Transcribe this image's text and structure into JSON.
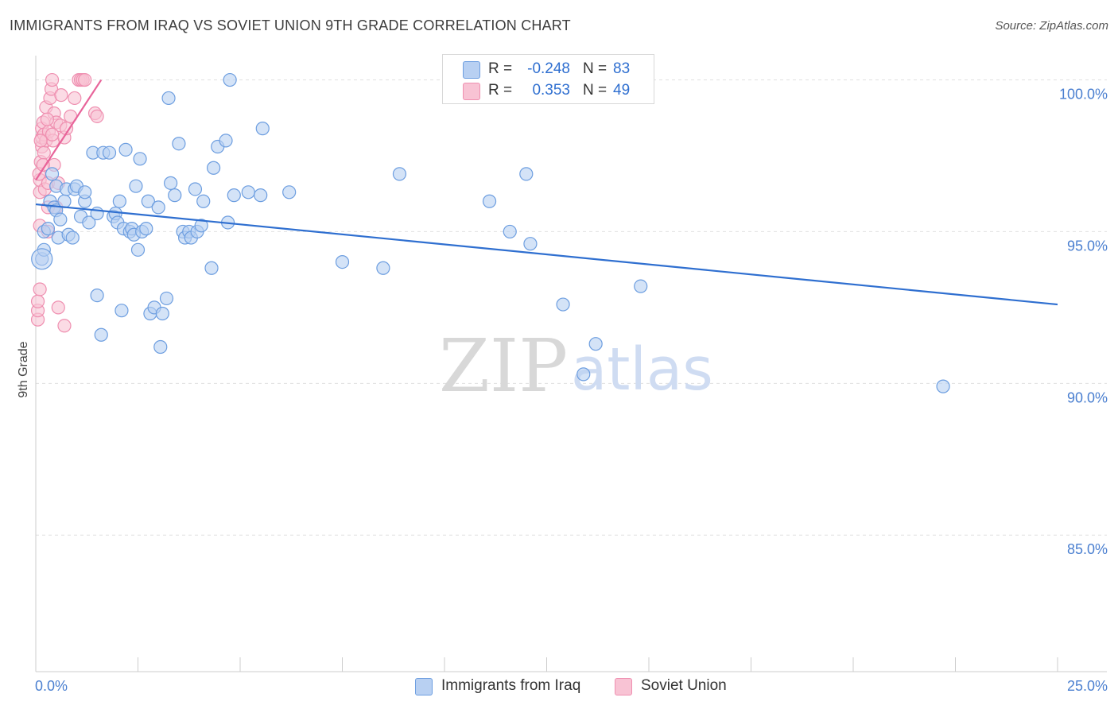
{
  "title": "IMMIGRANTS FROM IRAQ VS SOVIET UNION 9TH GRADE CORRELATION CHART",
  "source": "Source: ZipAtlas.com",
  "watermark": {
    "zip": "ZIP",
    "atlas": "atlas"
  },
  "colors": {
    "blue_fill": "#b8d0f2",
    "blue_stroke": "#6d9ee0",
    "blue_line": "#2f6fd0",
    "pink_fill": "#f8c3d4",
    "pink_stroke": "#ef8fb0",
    "pink_line": "#e8649a",
    "grid": "#e0e0e0",
    "axis_text": "#4a7fd0"
  },
  "legend": {
    "rows": [
      {
        "r_label": "R =",
        "r_value": "-0.248",
        "n_label": "N =",
        "n_value": "83"
      },
      {
        "r_label": "R =",
        "r_value": "0.353",
        "n_label": "N =",
        "n_value": "49"
      }
    ]
  },
  "chart_data": {
    "type": "scatter",
    "xlabel": "",
    "ylabel": "9th Grade",
    "xlim": [
      0,
      25
    ],
    "ylim": [
      80.5,
      100.8
    ],
    "x_tick_labels": [
      "0.0%",
      "25.0%"
    ],
    "y_tick_labels": [
      "100.0%",
      "95.0%",
      "90.0%",
      "85.0%"
    ],
    "y_ticks": [
      100,
      95,
      90,
      85
    ],
    "grid": true,
    "series": [
      {
        "name": "Immigrants from Iraq",
        "color": "#6d9ee0",
        "r": -0.248,
        "n": 83,
        "trend": {
          "x": [
            0,
            25
          ],
          "y": [
            95.9,
            92.6
          ]
        },
        "points": [
          [
            0.15,
            94.1
          ],
          [
            0.2,
            94.4
          ],
          [
            0.2,
            95.0
          ],
          [
            0.3,
            95.1
          ],
          [
            0.35,
            96.0
          ],
          [
            0.4,
            96.9
          ],
          [
            0.45,
            95.8
          ],
          [
            0.5,
            95.7
          ],
          [
            0.5,
            96.5
          ],
          [
            0.55,
            94.8
          ],
          [
            0.6,
            95.4
          ],
          [
            0.7,
            96.0
          ],
          [
            0.75,
            96.4
          ],
          [
            0.8,
            94.9
          ],
          [
            0.9,
            94.8
          ],
          [
            0.95,
            96.4
          ],
          [
            1.0,
            96.5
          ],
          [
            1.1,
            95.5
          ],
          [
            1.2,
            96.0
          ],
          [
            1.2,
            96.3
          ],
          [
            1.3,
            95.3
          ],
          [
            1.4,
            97.6
          ],
          [
            1.5,
            95.6
          ],
          [
            1.5,
            92.9
          ],
          [
            1.6,
            91.6
          ],
          [
            1.65,
            97.6
          ],
          [
            1.8,
            97.6
          ],
          [
            1.9,
            95.5
          ],
          [
            1.95,
            95.6
          ],
          [
            2.0,
            95.3
          ],
          [
            2.05,
            96.0
          ],
          [
            2.1,
            92.4
          ],
          [
            2.15,
            95.1
          ],
          [
            2.2,
            97.7
          ],
          [
            2.3,
            95.0
          ],
          [
            2.35,
            95.1
          ],
          [
            2.4,
            94.9
          ],
          [
            2.45,
            96.5
          ],
          [
            2.5,
            94.4
          ],
          [
            2.55,
            97.4
          ],
          [
            2.6,
            95.0
          ],
          [
            2.7,
            95.1
          ],
          [
            2.75,
            96.0
          ],
          [
            2.8,
            92.3
          ],
          [
            2.9,
            92.5
          ],
          [
            3.0,
            95.8
          ],
          [
            3.05,
            91.2
          ],
          [
            3.1,
            92.3
          ],
          [
            3.2,
            92.8
          ],
          [
            3.25,
            99.4
          ],
          [
            3.3,
            96.6
          ],
          [
            3.4,
            96.2
          ],
          [
            3.5,
            97.9
          ],
          [
            3.6,
            95.0
          ],
          [
            3.65,
            94.8
          ],
          [
            3.75,
            95.0
          ],
          [
            3.8,
            94.8
          ],
          [
            3.9,
            96.4
          ],
          [
            3.95,
            95.0
          ],
          [
            4.05,
            95.2
          ],
          [
            4.1,
            96.0
          ],
          [
            4.3,
            93.8
          ],
          [
            4.35,
            97.1
          ],
          [
            4.45,
            97.8
          ],
          [
            4.65,
            98.0
          ],
          [
            4.7,
            95.3
          ],
          [
            4.75,
            100.0
          ],
          [
            4.85,
            96.2
          ],
          [
            5.2,
            96.3
          ],
          [
            5.5,
            96.2
          ],
          [
            5.55,
            98.4
          ],
          [
            6.2,
            96.3
          ],
          [
            7.5,
            94.0
          ],
          [
            8.5,
            93.8
          ],
          [
            8.9,
            96.9
          ],
          [
            11.1,
            96.0
          ],
          [
            11.6,
            95.0
          ],
          [
            12.0,
            96.9
          ],
          [
            12.1,
            94.6
          ],
          [
            12.9,
            92.6
          ],
          [
            13.7,
            91.3
          ],
          [
            13.4,
            90.3
          ],
          [
            14.8,
            93.2
          ],
          [
            22.2,
            89.9
          ]
        ]
      },
      {
        "name": "Soviet Union",
        "color": "#ef8fb0",
        "r": 0.353,
        "n": 49,
        "trend": {
          "x": [
            0,
            1.6
          ],
          "y": [
            96.7,
            100.0
          ]
        },
        "points": [
          [
            0.05,
            92.1
          ],
          [
            0.05,
            92.4
          ],
          [
            0.05,
            92.7
          ],
          [
            0.1,
            93.1
          ],
          [
            0.1,
            95.2
          ],
          [
            0.1,
            96.3
          ],
          [
            0.1,
            96.7
          ],
          [
            0.12,
            97.3
          ],
          [
            0.15,
            97.8
          ],
          [
            0.15,
            98.1
          ],
          [
            0.15,
            98.4
          ],
          [
            0.18,
            98.6
          ],
          [
            0.2,
            98.2
          ],
          [
            0.2,
            97.6
          ],
          [
            0.22,
            96.4
          ],
          [
            0.25,
            99.1
          ],
          [
            0.25,
            98.0
          ],
          [
            0.3,
            95.0
          ],
          [
            0.3,
            96.6
          ],
          [
            0.32,
            98.3
          ],
          [
            0.35,
            99.4
          ],
          [
            0.38,
            99.7
          ],
          [
            0.4,
            100.0
          ],
          [
            0.42,
            98.0
          ],
          [
            0.45,
            98.9
          ],
          [
            0.45,
            97.2
          ],
          [
            0.5,
            98.6
          ],
          [
            0.5,
            95.8
          ],
          [
            0.55,
            96.6
          ],
          [
            0.55,
            92.5
          ],
          [
            0.6,
            98.5
          ],
          [
            0.62,
            99.5
          ],
          [
            0.7,
            98.1
          ],
          [
            0.7,
            91.9
          ],
          [
            0.75,
            98.4
          ],
          [
            0.85,
            98.8
          ],
          [
            0.95,
            99.4
          ],
          [
            1.05,
            100.0
          ],
          [
            1.1,
            100.0
          ],
          [
            1.15,
            100.0
          ],
          [
            1.2,
            100.0
          ],
          [
            1.45,
            98.9
          ],
          [
            1.5,
            98.8
          ],
          [
            0.08,
            96.9
          ],
          [
            0.18,
            97.2
          ],
          [
            0.28,
            98.7
          ],
          [
            0.4,
            98.2
          ],
          [
            0.12,
            98.0
          ],
          [
            0.3,
            95.8
          ]
        ]
      }
    ]
  },
  "bottom_legend": [
    {
      "label": "Immigrants from Iraq"
    },
    {
      "label": "Soviet Union"
    }
  ]
}
